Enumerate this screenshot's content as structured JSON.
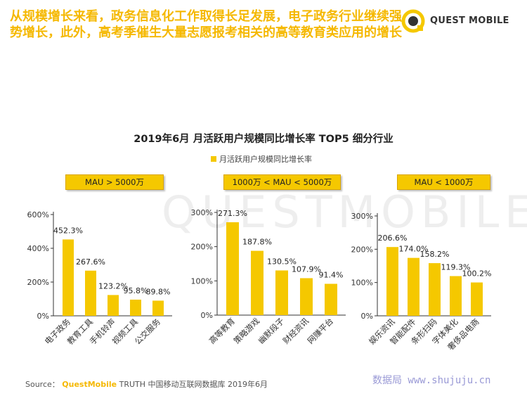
{
  "headline": "从规模增长来看，政务信息化工作取得长足发展，电子政务行业继续强势增长，此外，高考季催生大量志愿报考相关的高等教育类应用的增长",
  "brand": {
    "name": "QUEST MOBILE",
    "watermark": "QUESTMOBILE"
  },
  "colors": {
    "accent": "#f5c800",
    "headline": "#f5b800"
  },
  "chart_data": {
    "type": "bar",
    "title": "2019年6月 月活跃用户规模同比增长率 TOP5 细分行业",
    "legend": "月活跃用户规模同比增长率",
    "legend_position": "top-center",
    "grid": false,
    "panels": [
      {
        "label": "MAU > 5000万",
        "categories": [
          "电子政务",
          "教育工具",
          "手机铃声",
          "视频工具",
          "公交服务"
        ],
        "values": [
          452.3,
          267.6,
          123.2,
          95.8,
          89.8
        ],
        "value_labels": [
          "452.3%",
          "267.6%",
          "123.2%",
          "95.8%",
          "89.8%"
        ],
        "ylim": [
          0,
          600
        ],
        "ticks": [
          "0%",
          "200%",
          "400%",
          "600%"
        ]
      },
      {
        "label": "1000万 < MAU < 5000万",
        "categories": [
          "高等教育",
          "策略游戏",
          "幽默段子",
          "财经资讯",
          "网赚平台"
        ],
        "values": [
          271.3,
          187.8,
          130.5,
          107.9,
          91.4
        ],
        "value_labels": [
          "271.3%",
          "187.8%",
          "130.5%",
          "107.9%",
          "91.4%"
        ],
        "ylim": [
          0,
          300
        ],
        "ticks": [
          "0%",
          "100%",
          "200%",
          "300%"
        ]
      },
      {
        "label": "MAU < 1000万",
        "categories": [
          "娱乐资讯",
          "智能配件",
          "条形扫码",
          "字体美化",
          "奢侈品电商"
        ],
        "values": [
          206.6,
          174.0,
          158.2,
          119.3,
          100.2
        ],
        "value_labels": [
          "206.6%",
          "174.0%",
          "158.2%",
          "119.3%",
          "100.2%"
        ],
        "ylim": [
          0,
          300
        ],
        "ticks": [
          "0%",
          "100%",
          "200%",
          "300%"
        ]
      }
    ]
  },
  "source": {
    "label": "Source：",
    "brand": "QuestMobile",
    "text": "TRUTH 中国移动互联网数据库 2019年6月"
  },
  "site_mark": "数据局 www.shujuju.cn"
}
